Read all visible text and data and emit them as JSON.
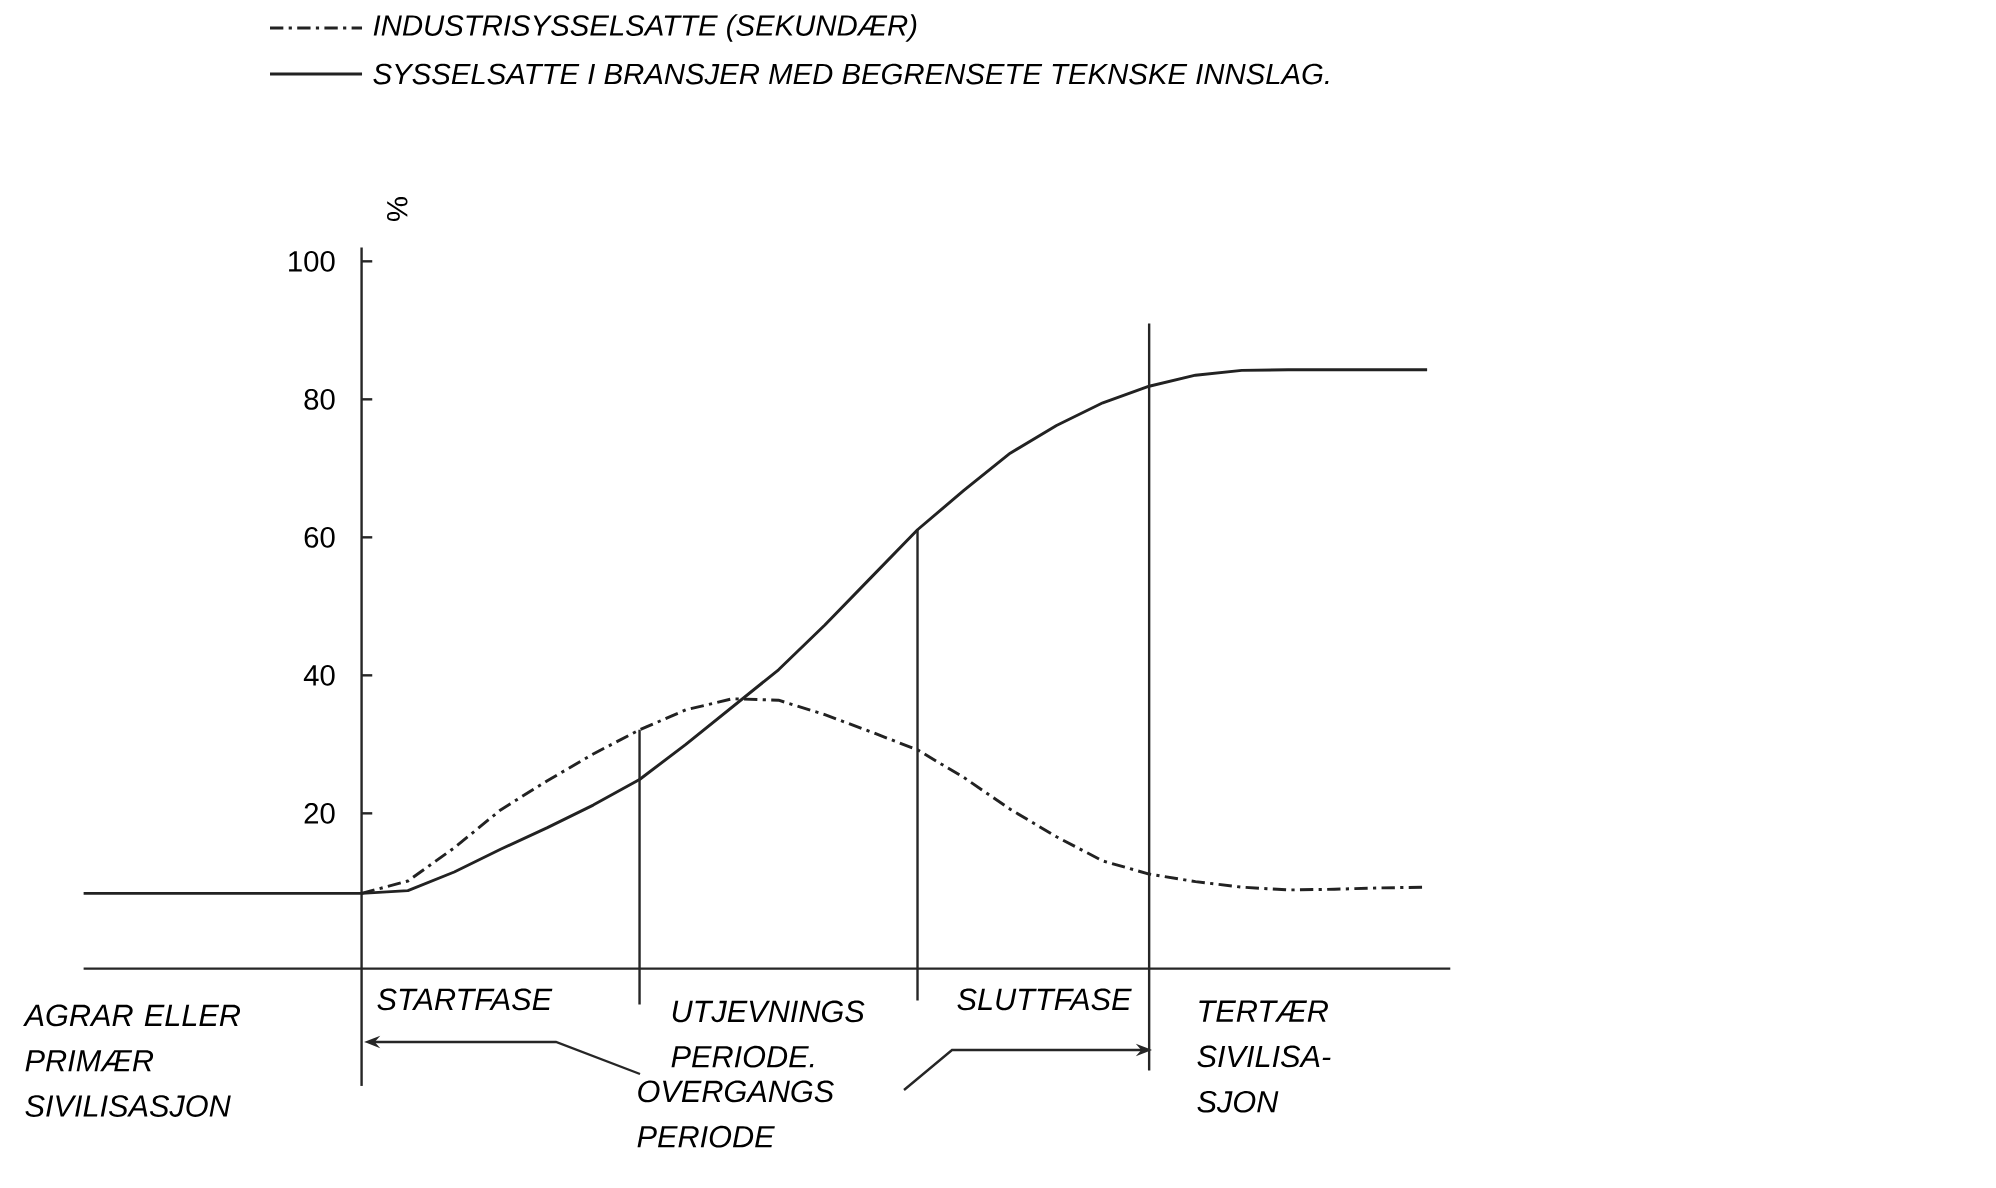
{
  "chart_data": {
    "type": "line",
    "ylabel": "%",
    "categories": [
      null,
      null,
      null,
      null,
      null,
      null,
      null,
      null,
      null,
      null,
      null,
      null,
      null,
      null,
      null,
      null,
      null,
      null,
      null,
      null,
      null,
      null,
      null,
      null,
      null,
      null,
      null,
      null,
      null,
      null
    ],
    "ylim": [
      -2.5,
      102
    ],
    "yticks": [
      20,
      40,
      60,
      80,
      100
    ],
    "tick_labels": "y",
    "legend": "top",
    "series": [
      {
        "name": "INDUSTRISYSSELSATTE (SEKUNDÆR)",
        "color": "#222222",
        "line_style": "dashdot",
        "values": [
          null,
          null,
          null,
          null,
          null,
          null,
          8.4,
          10.2,
          15.0,
          20.5,
          24.7,
          28.6,
          32.1,
          35.0,
          36.6,
          36.4,
          34.3,
          31.8,
          29.2,
          25.2,
          20.6,
          16.6,
          13.1,
          11.2,
          10.1,
          9.3,
          8.9,
          9.0,
          9.2,
          9.3
        ]
      },
      {
        "name": "SYSSELSATTE I BRANSJER MED BEGRENSETE TEKNSKE INNSLAG.",
        "color": "#222222",
        "line_style": "solid",
        "values": [
          8.4,
          8.4,
          8.4,
          8.4,
          8.4,
          8.4,
          8.4,
          8.8,
          11.5,
          14.8,
          17.9,
          21.2,
          24.9,
          30.0,
          35.4,
          40.8,
          47.3,
          54.2,
          61.1,
          66.8,
          72.2,
          76.2,
          79.5,
          81.9,
          83.5,
          84.2,
          84.3,
          84.3,
          84.3,
          84.3
        ]
      }
    ],
    "annotations": [
      "AGRAR ELLER PRIMÆR SIVILISASJON",
      "STARTFASE",
      "UTJEVNINGS PERIODE.",
      "SLUTTFASE",
      "TERTÆR SIVILISA-SJON",
      "OVERGANGS PERIODE"
    ]
  }
}
